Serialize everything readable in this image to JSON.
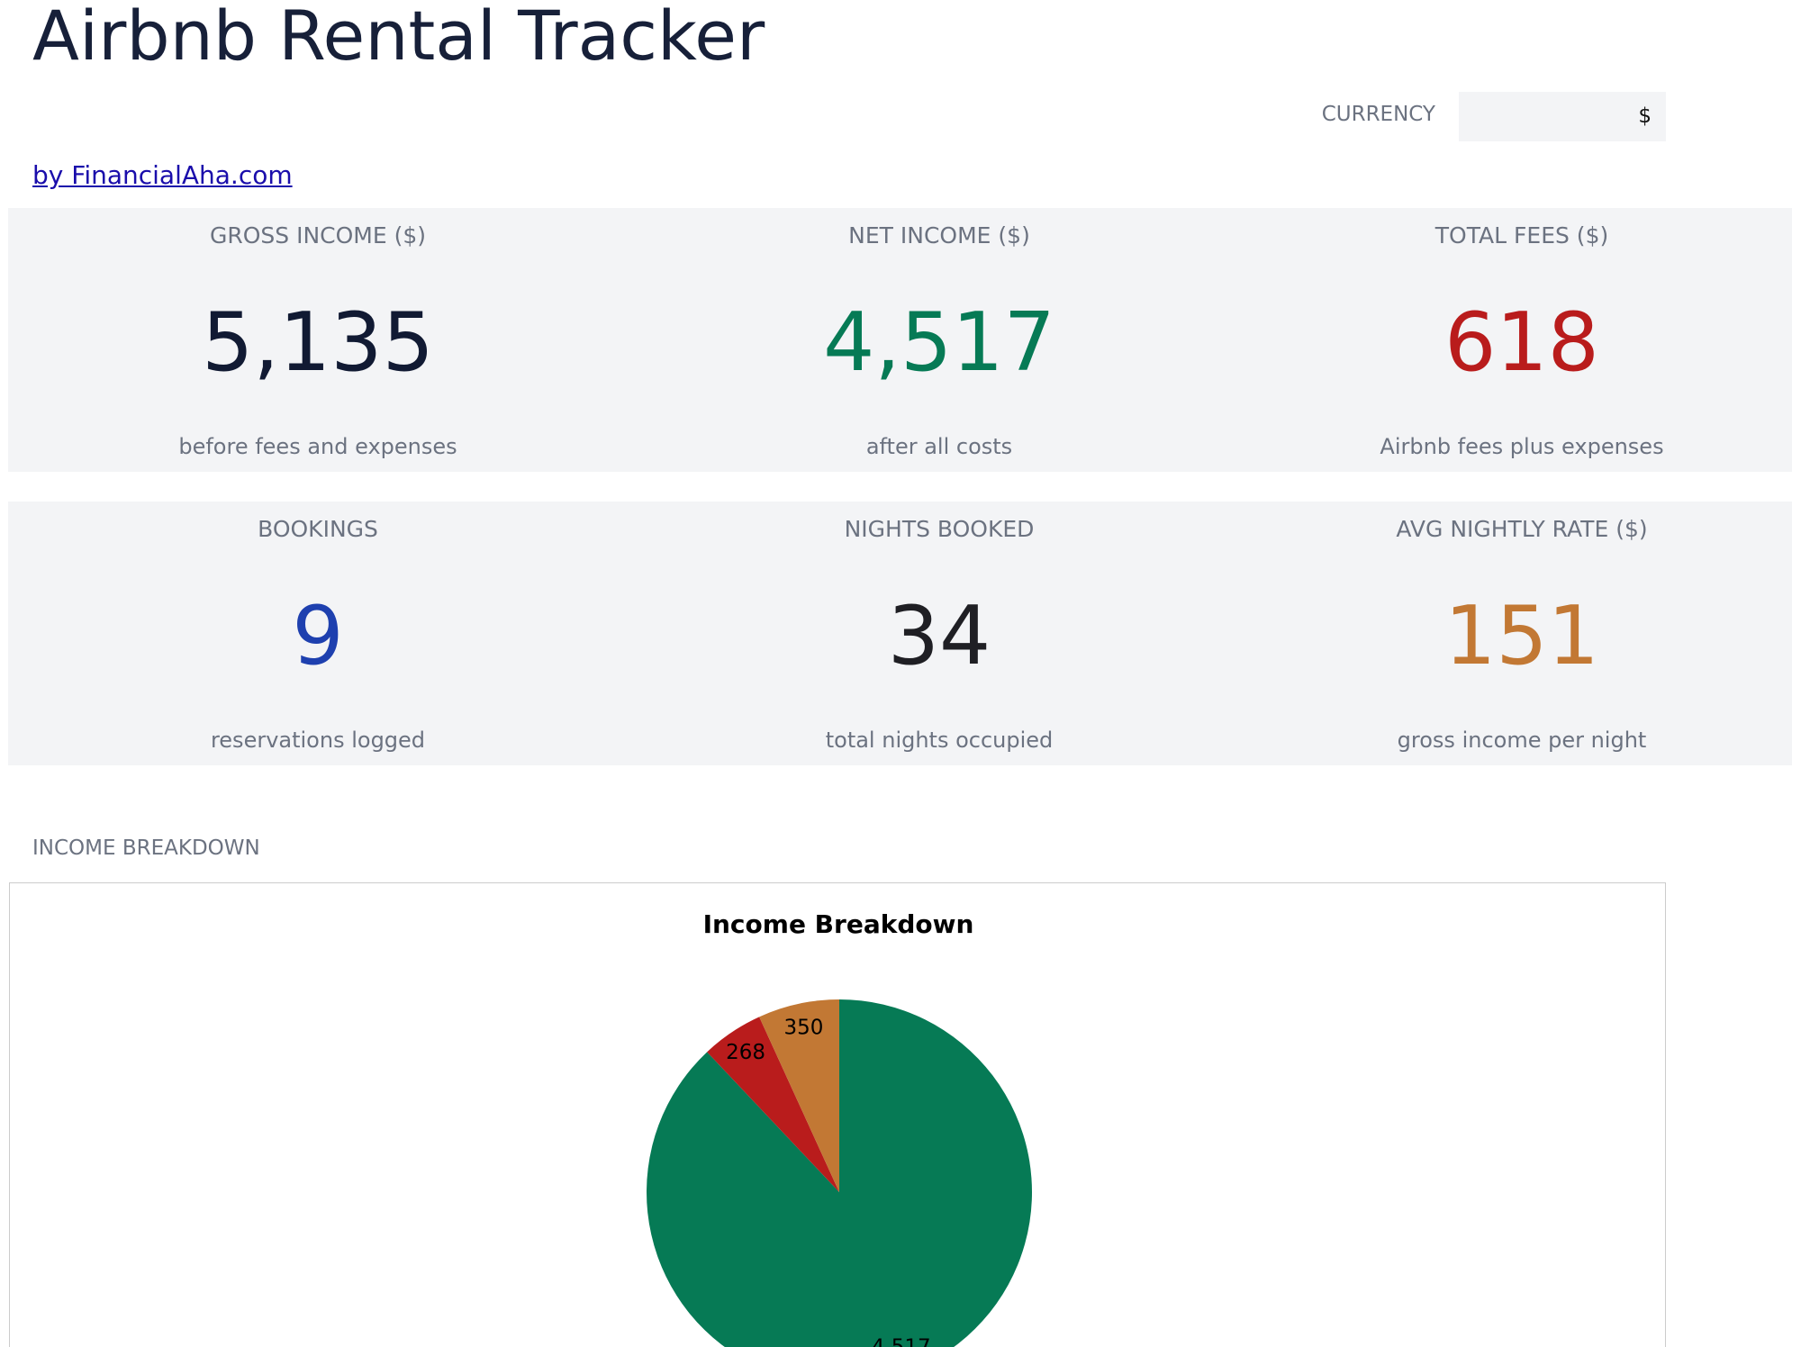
{
  "header": {
    "title": "Airbnb Rental Tracker",
    "currency_label": "CURRENCY",
    "currency_value": "$",
    "link": "by FinancialAha.com"
  },
  "cards": [
    [
      {
        "label": "GROSS INCOME ($)",
        "value": "5,135",
        "note": "before fees and expenses",
        "color": "#111a33"
      },
      {
        "label": "NET INCOME ($)",
        "value": "4,517",
        "note": "after all costs",
        "color": "#067a55"
      },
      {
        "label": "TOTAL FEES ($)",
        "value": "618",
        "note": "Airbnb fees plus expenses",
        "color": "#b91c1c"
      }
    ],
    [
      {
        "label": "BOOKINGS",
        "value": "9",
        "note": "reservations logged",
        "color": "#1e40af"
      },
      {
        "label": "NIGHTS BOOKED",
        "value": "34",
        "note": "total nights occupied",
        "color": "#1f1f24"
      },
      {
        "label": "AVG NIGHTLY RATE ($)",
        "value": "151",
        "note": "gross income per night",
        "color": "#c27834"
      }
    ]
  ],
  "section_label": "INCOME BREAKDOWN",
  "chart_data": {
    "type": "pie",
    "title": "Income Breakdown",
    "values": [
      4517,
      268,
      350
    ],
    "value_labels": [
      "4,517",
      "268",
      "350"
    ],
    "colors": [
      "#067a55",
      "#b91c1c",
      "#c27834"
    ]
  }
}
